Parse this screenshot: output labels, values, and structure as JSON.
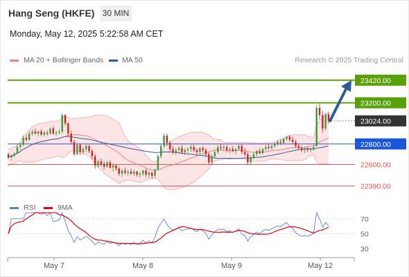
{
  "header": {
    "title": "Hang Seng (HKFE)",
    "timeframe": "30 MIN",
    "datetime": "Monday, May 12, 2025 5:22:58 AM CET",
    "credit": "Research © 2025 Trading Central"
  },
  "legend": {
    "bollinger": {
      "label": "MA 20 + Bollinger Bands",
      "color": "#f08080"
    },
    "ma50": {
      "label": "MA 50",
      "color": "#2a5d9f"
    },
    "rsi": {
      "label": "RSI",
      "color": "#5b7fd6"
    },
    "rsi_ma": {
      "label": "9MA",
      "color": "#e00000"
    }
  },
  "chart_data": [
    {
      "type": "candlestick",
      "x_ticks": [
        "May 7",
        "May 8",
        "May 9",
        "May 12"
      ],
      "ylim": [
        22280,
        23560
      ],
      "current_price": 23024.0,
      "levels": [
        {
          "value": 23420.0,
          "label": "23420.00",
          "kind": "resistance",
          "color": "#5aa00a"
        },
        {
          "value": 23200.0,
          "label": "23200.00",
          "kind": "resistance",
          "color": "#5aa00a"
        },
        {
          "value": 23024.0,
          "label": "23024.00",
          "kind": "last",
          "color": "#333333"
        },
        {
          "value": 22800.0,
          "label": "22800.00",
          "kind": "pivot",
          "color": "#1a56db"
        },
        {
          "value": 22600.0,
          "label": "22600.00",
          "kind": "support",
          "color": "#e05050"
        },
        {
          "value": 22390.0,
          "label": "22390.00",
          "kind": "support",
          "color": "#e05050"
        }
      ],
      "forecast_arrow": {
        "from": 23024,
        "to": 23420
      },
      "candles_ohlc": [
        [
          22700,
          22715,
          22650,
          22670
        ],
        [
          22670,
          22700,
          22640,
          22690
        ],
        [
          22690,
          22720,
          22670,
          22710
        ],
        [
          22710,
          22790,
          22700,
          22770
        ],
        [
          22770,
          22810,
          22740,
          22790
        ],
        [
          22790,
          22880,
          22780,
          22860
        ],
        [
          22860,
          22890,
          22820,
          22840
        ],
        [
          22840,
          22920,
          22830,
          22900
        ],
        [
          22900,
          22940,
          22880,
          22920
        ],
        [
          22920,
          22950,
          22890,
          22900
        ],
        [
          22900,
          22930,
          22870,
          22920
        ],
        [
          22920,
          22940,
          22880,
          22890
        ],
        [
          22890,
          22930,
          22870,
          22910
        ],
        [
          22910,
          22930,
          22880,
          22900
        ],
        [
          22900,
          22960,
          22890,
          22950
        ],
        [
          22950,
          22970,
          22890,
          22900
        ],
        [
          22900,
          22930,
          22880,
          22910
        ],
        [
          22910,
          22940,
          22890,
          22920
        ],
        [
          22920,
          23100,
          22900,
          23080
        ],
        [
          23080,
          23090,
          22980,
          23000
        ],
        [
          23000,
          23010,
          22880,
          22900
        ],
        [
          22900,
          22930,
          22800,
          22820
        ],
        [
          22820,
          22840,
          22680,
          22700
        ],
        [
          22700,
          22810,
          22690,
          22790
        ],
        [
          22790,
          22800,
          22690,
          22720
        ],
        [
          22720,
          22770,
          22700,
          22750
        ],
        [
          22750,
          22800,
          22720,
          22780
        ],
        [
          22780,
          22790,
          22710,
          22730
        ],
        [
          22730,
          22750,
          22650,
          22680
        ],
        [
          22680,
          22700,
          22560,
          22590
        ],
        [
          22590,
          22650,
          22570,
          22630
        ],
        [
          22630,
          22660,
          22580,
          22600
        ],
        [
          22600,
          22630,
          22550,
          22580
        ],
        [
          22580,
          22640,
          22570,
          22620
        ],
        [
          22620,
          22640,
          22560,
          22570
        ],
        [
          22570,
          22610,
          22530,
          22590
        ],
        [
          22590,
          22600,
          22540,
          22560
        ],
        [
          22560,
          22580,
          22490,
          22510
        ],
        [
          22510,
          22560,
          22480,
          22540
        ],
        [
          22540,
          22570,
          22500,
          22520
        ],
        [
          22520,
          22550,
          22490,
          22530
        ],
        [
          22530,
          22560,
          22500,
          22510
        ],
        [
          22510,
          22550,
          22490,
          22530
        ],
        [
          22530,
          22540,
          22480,
          22500
        ],
        [
          22500,
          22530,
          22470,
          22510
        ],
        [
          22510,
          22550,
          22490,
          22540
        ],
        [
          22540,
          22560,
          22480,
          22500
        ],
        [
          22500,
          22540,
          22470,
          22520
        ],
        [
          22520,
          22530,
          22460,
          22490
        ],
        [
          22490,
          22560,
          22470,
          22550
        ],
        [
          22550,
          22700,
          22540,
          22680
        ],
        [
          22680,
          22800,
          22660,
          22780
        ],
        [
          22780,
          22900,
          22760,
          22880
        ],
        [
          22880,
          22900,
          22780,
          22810
        ],
        [
          22810,
          22830,
          22720,
          22750
        ],
        [
          22750,
          22780,
          22700,
          22720
        ],
        [
          22720,
          22760,
          22690,
          22740
        ],
        [
          22740,
          22780,
          22710,
          22760
        ],
        [
          22760,
          22790,
          22700,
          22720
        ],
        [
          22720,
          22760,
          22690,
          22740
        ],
        [
          22740,
          22770,
          22710,
          22750
        ],
        [
          22750,
          22790,
          22720,
          22770
        ],
        [
          22770,
          22790,
          22720,
          22740
        ],
        [
          22740,
          22760,
          22700,
          22720
        ],
        [
          22720,
          22770,
          22700,
          22760
        ],
        [
          22760,
          22780,
          22720,
          22740
        ],
        [
          22740,
          22760,
          22680,
          22700
        ],
        [
          22700,
          22720,
          22600,
          22620
        ],
        [
          22620,
          22700,
          22600,
          22680
        ],
        [
          22680,
          22740,
          22660,
          22720
        ],
        [
          22720,
          22790,
          22700,
          22770
        ],
        [
          22770,
          22800,
          22740,
          22760
        ],
        [
          22760,
          22790,
          22730,
          22770
        ],
        [
          22770,
          22790,
          22720,
          22740
        ],
        [
          22740,
          22770,
          22710,
          22750
        ],
        [
          22750,
          22780,
          22720,
          22730
        ],
        [
          22730,
          22760,
          22700,
          22750
        ],
        [
          22750,
          22800,
          22740,
          22780
        ],
        [
          22780,
          22800,
          22700,
          22720
        ],
        [
          22720,
          22760,
          22680,
          22700
        ],
        [
          22700,
          22720,
          22600,
          22620
        ],
        [
          22620,
          22690,
          22600,
          22670
        ],
        [
          22670,
          22720,
          22650,
          22700
        ],
        [
          22700,
          22740,
          22680,
          22730
        ],
        [
          22730,
          22760,
          22700,
          22710
        ],
        [
          22710,
          22760,
          22700,
          22750
        ],
        [
          22750,
          22790,
          22730,
          22770
        ],
        [
          22770,
          22800,
          22740,
          22760
        ],
        [
          22760,
          22790,
          22740,
          22780
        ],
        [
          22780,
          22820,
          22760,
          22800
        ],
        [
          22800,
          22840,
          22780,
          22820
        ],
        [
          22820,
          22850,
          22790,
          22810
        ],
        [
          22810,
          22860,
          22800,
          22850
        ],
        [
          22850,
          22880,
          22830,
          22870
        ],
        [
          22870,
          22890,
          22820,
          22840
        ],
        [
          22840,
          22870,
          22800,
          22820
        ],
        [
          22820,
          22840,
          22760,
          22780
        ],
        [
          22780,
          22800,
          22740,
          22760
        ],
        [
          22760,
          22780,
          22720,
          22740
        ],
        [
          22740,
          22770,
          22710,
          22750
        ],
        [
          22750,
          22770,
          22720,
          22740
        ],
        [
          22740,
          22760,
          22720,
          22750
        ],
        [
          22750,
          22790,
          22730,
          22770
        ],
        [
          22780,
          23180,
          22770,
          23150
        ],
        [
          23150,
          23190,
          23040,
          23080
        ],
        [
          23080,
          23120,
          22910,
          22950
        ],
        [
          22950,
          23100,
          22930,
          23090
        ],
        [
          23090,
          23110,
          23000,
          23024
        ]
      ]
    },
    {
      "type": "line",
      "name_series": [
        "RSI",
        "9MA"
      ],
      "y_ticks": [
        70,
        50,
        30
      ],
      "ylim": [
        20,
        80
      ]
    }
  ]
}
